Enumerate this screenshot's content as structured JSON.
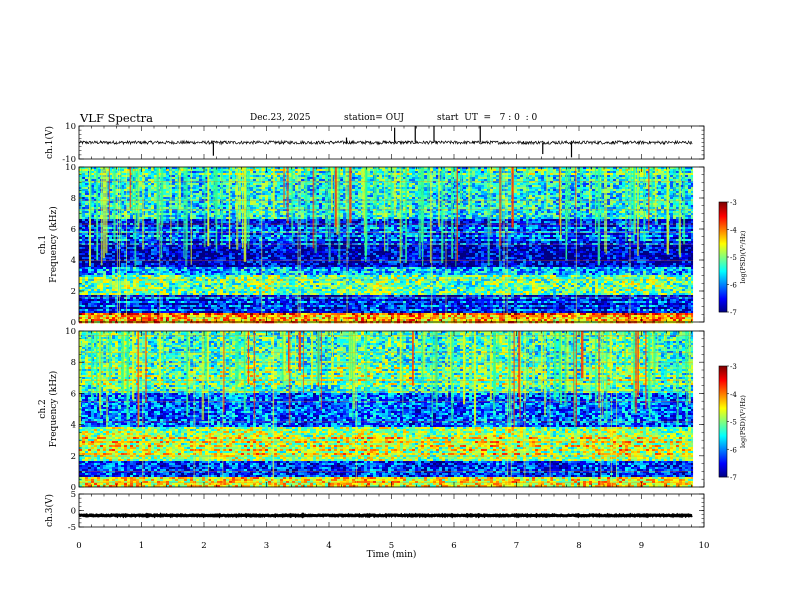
{
  "header": {
    "title": "VLF Spectra",
    "date": "Dec.23, 2025",
    "station": "station= OUJ",
    "start": "start  UT  =   7 : 0  : 0"
  },
  "chart_data": [
    {
      "type": "line",
      "name": "ch1-waveform",
      "ylabel": "ch.1(V)",
      "ylim": [
        -10,
        10
      ],
      "yticks": [
        "10",
        "-10"
      ],
      "baseline": 0,
      "noise_amplitude": 1,
      "spikes": [
        {
          "t": 2.15,
          "v": -8
        },
        {
          "t": 4.28,
          "v": 3
        },
        {
          "t": 5.05,
          "v": 9
        },
        {
          "t": 5.38,
          "v": 10
        },
        {
          "t": 5.68,
          "v": 10
        },
        {
          "t": 6.42,
          "v": 10
        },
        {
          "t": 7.42,
          "v": -7
        },
        {
          "t": 7.88,
          "v": -9
        }
      ]
    },
    {
      "type": "heatmap",
      "name": "ch1-spectrogram",
      "ylabel": "ch.1",
      "ylabel2": "Frequency (kHz)",
      "ylim": [
        0,
        10
      ],
      "yticks": [
        "0",
        "2",
        "4",
        "6",
        "8",
        "10"
      ],
      "colorbar": {
        "label": "log(PSD)(V²/Hz)",
        "range": [
          -7,
          -3
        ],
        "ticks": [
          "-3",
          "-4",
          "-5",
          "-6",
          "-7"
        ]
      },
      "bands": [
        {
          "lo": 0,
          "hi": 0.6,
          "level": -4.2
        },
        {
          "lo": 0.6,
          "hi": 1.7,
          "level": -6.6
        },
        {
          "lo": 1.7,
          "hi": 3.0,
          "level": -5.1
        },
        {
          "lo": 3.0,
          "hi": 3.6,
          "level": -5.8
        },
        {
          "lo": 3.6,
          "hi": 5.2,
          "level": -6.7
        },
        {
          "lo": 5.2,
          "hi": 6.6,
          "level": -6.4
        },
        {
          "lo": 6.6,
          "hi": 10,
          "level": -5.5
        }
      ]
    },
    {
      "type": "heatmap",
      "name": "ch2-spectrogram",
      "ylabel": "ch.2",
      "ylabel2": "Frequency (kHz)",
      "ylim": [
        0,
        10
      ],
      "yticks": [
        "0",
        "2",
        "4",
        "6",
        "8",
        "10"
      ],
      "colorbar": {
        "label": "log(PSD)(V²/Hz)",
        "range": [
          -7,
          -3
        ],
        "ticks": [
          "-3",
          "-4",
          "-5",
          "-6",
          "-7"
        ]
      },
      "bands": [
        {
          "lo": 0,
          "hi": 0.6,
          "level": -4.5
        },
        {
          "lo": 0.6,
          "hi": 1.7,
          "level": -6.3
        },
        {
          "lo": 1.7,
          "hi": 3.8,
          "level": -4.9
        },
        {
          "lo": 3.8,
          "hi": 6.0,
          "level": -6.1
        },
        {
          "lo": 6.0,
          "hi": 10,
          "level": -5.3
        }
      ]
    },
    {
      "type": "line",
      "name": "ch3-waveform",
      "ylabel": "ch.3(V)",
      "ylim": [
        -5,
        5
      ],
      "yticks": [
        "5",
        "0",
        "-5"
      ],
      "baseline": -1.5,
      "noise_amplitude": 0.15
    }
  ],
  "time_axis": {
    "xlabel": "Time (min)",
    "xlim": [
      0,
      10
    ],
    "data_end": 9.82,
    "xticks": [
      "0",
      "1",
      "2",
      "3",
      "4",
      "5",
      "6",
      "7",
      "8",
      "9",
      "10"
    ]
  },
  "colors": {
    "axis": "#000000",
    "trace": "#000000",
    "background": "#ffffff"
  }
}
